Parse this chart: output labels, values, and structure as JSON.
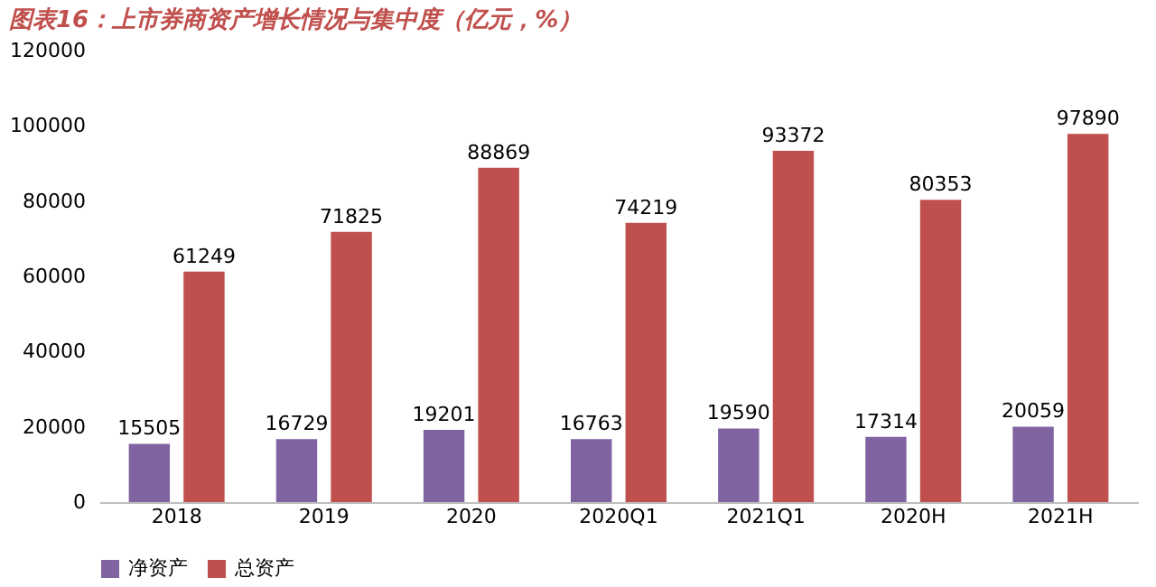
{
  "chart_data": {
    "type": "bar",
    "title": "图表16：上市券商资产增长情况与集中度（亿元，%）",
    "categories": [
      "2018",
      "2019",
      "2020",
      "2020Q1",
      "2021Q1",
      "2020H",
      "2021H"
    ],
    "series": [
      {
        "name": "净资产",
        "color": "#8064a2",
        "values": [
          15505,
          16729,
          19201,
          16763,
          19590,
          17314,
          20059
        ]
      },
      {
        "name": "总资产",
        "color": "#c0504d",
        "values": [
          61249,
          71825,
          88869,
          74219,
          93372,
          80353,
          97890
        ]
      }
    ],
    "ylim": [
      0,
      120000
    ],
    "yticks": [
      0,
      20000,
      40000,
      60000,
      80000,
      100000,
      120000
    ],
    "grid": false,
    "legend": "bottom",
    "data_labels": true
  }
}
